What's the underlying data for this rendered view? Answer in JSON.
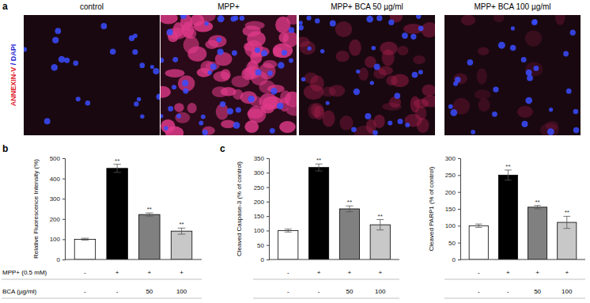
{
  "chart_data": [
    {
      "type": "bar",
      "y_label": "Relative Fluorescence Intensity (%)",
      "categories": [
        null,
        null,
        null,
        null
      ],
      "values": [
        100,
        450,
        222,
        140
      ],
      "errors": [
        5,
        20,
        8,
        15
      ],
      "colors": [
        "#ffffff",
        "#000000",
        "#808080",
        "#c8c8c8"
      ],
      "significance": [
        null,
        "**",
        "**",
        "**"
      ],
      "ylim": [
        0,
        500
      ],
      "yticks": [
        0,
        100,
        200,
        300,
        400,
        500
      ],
      "grid": false,
      "tick_labels": "y"
    },
    {
      "type": "bar",
      "y_label": "Cleaved Caspase-3 (% of control)",
      "categories": [
        null,
        null,
        null,
        null
      ],
      "values": [
        100,
        318,
        175,
        120
      ],
      "errors": [
        5,
        12,
        10,
        18
      ],
      "colors": [
        "#ffffff",
        "#000000",
        "#808080",
        "#c8c8c8"
      ],
      "significance": [
        null,
        "**",
        "**",
        "**"
      ],
      "ylim": [
        0,
        350
      ],
      "yticks": [
        0,
        50,
        100,
        150,
        200,
        250,
        300,
        350
      ],
      "grid": false,
      "tick_labels": "y"
    },
    {
      "type": "bar",
      "y_label": "Cleaved PARP1 (% of control)",
      "categories": [
        null,
        null,
        null,
        null
      ],
      "values": [
        100,
        250,
        155,
        110
      ],
      "errors": [
        5,
        15,
        5,
        18
      ],
      "colors": [
        "#ffffff",
        "#000000",
        "#808080",
        "#c8c8c8"
      ],
      "significance": [
        null,
        "**",
        "**",
        "**"
      ],
      "ylim": [
        0,
        300
      ],
      "yticks": [
        0,
        50,
        100,
        150,
        200,
        250,
        300
      ],
      "grid": false,
      "tick_labels": "y"
    }
  ],
  "figure": {
    "panel_labels": [
      "a",
      "b",
      "c"
    ],
    "image_titles": [
      "control",
      "MPP+",
      "MPP+  BCA 50 µg/ml",
      "MPP+  BCA 100 µg/ml"
    ],
    "stain_label": [
      {
        "text": "ANNEXIN-V",
        "color": "#e0202a"
      },
      {
        "text": " / ",
        "color": "#2a2ad0"
      },
      {
        "text": "DAPI",
        "color": "#2a2ad0"
      }
    ],
    "conditions": [
      {
        "label": "MPP+ (0.5 mM)",
        "values": [
          "-",
          "+",
          "+",
          "+"
        ]
      },
      {
        "label": "BCA (µg/ml)",
        "values": [
          "-",
          "-",
          "50",
          "100"
        ]
      }
    ]
  }
}
